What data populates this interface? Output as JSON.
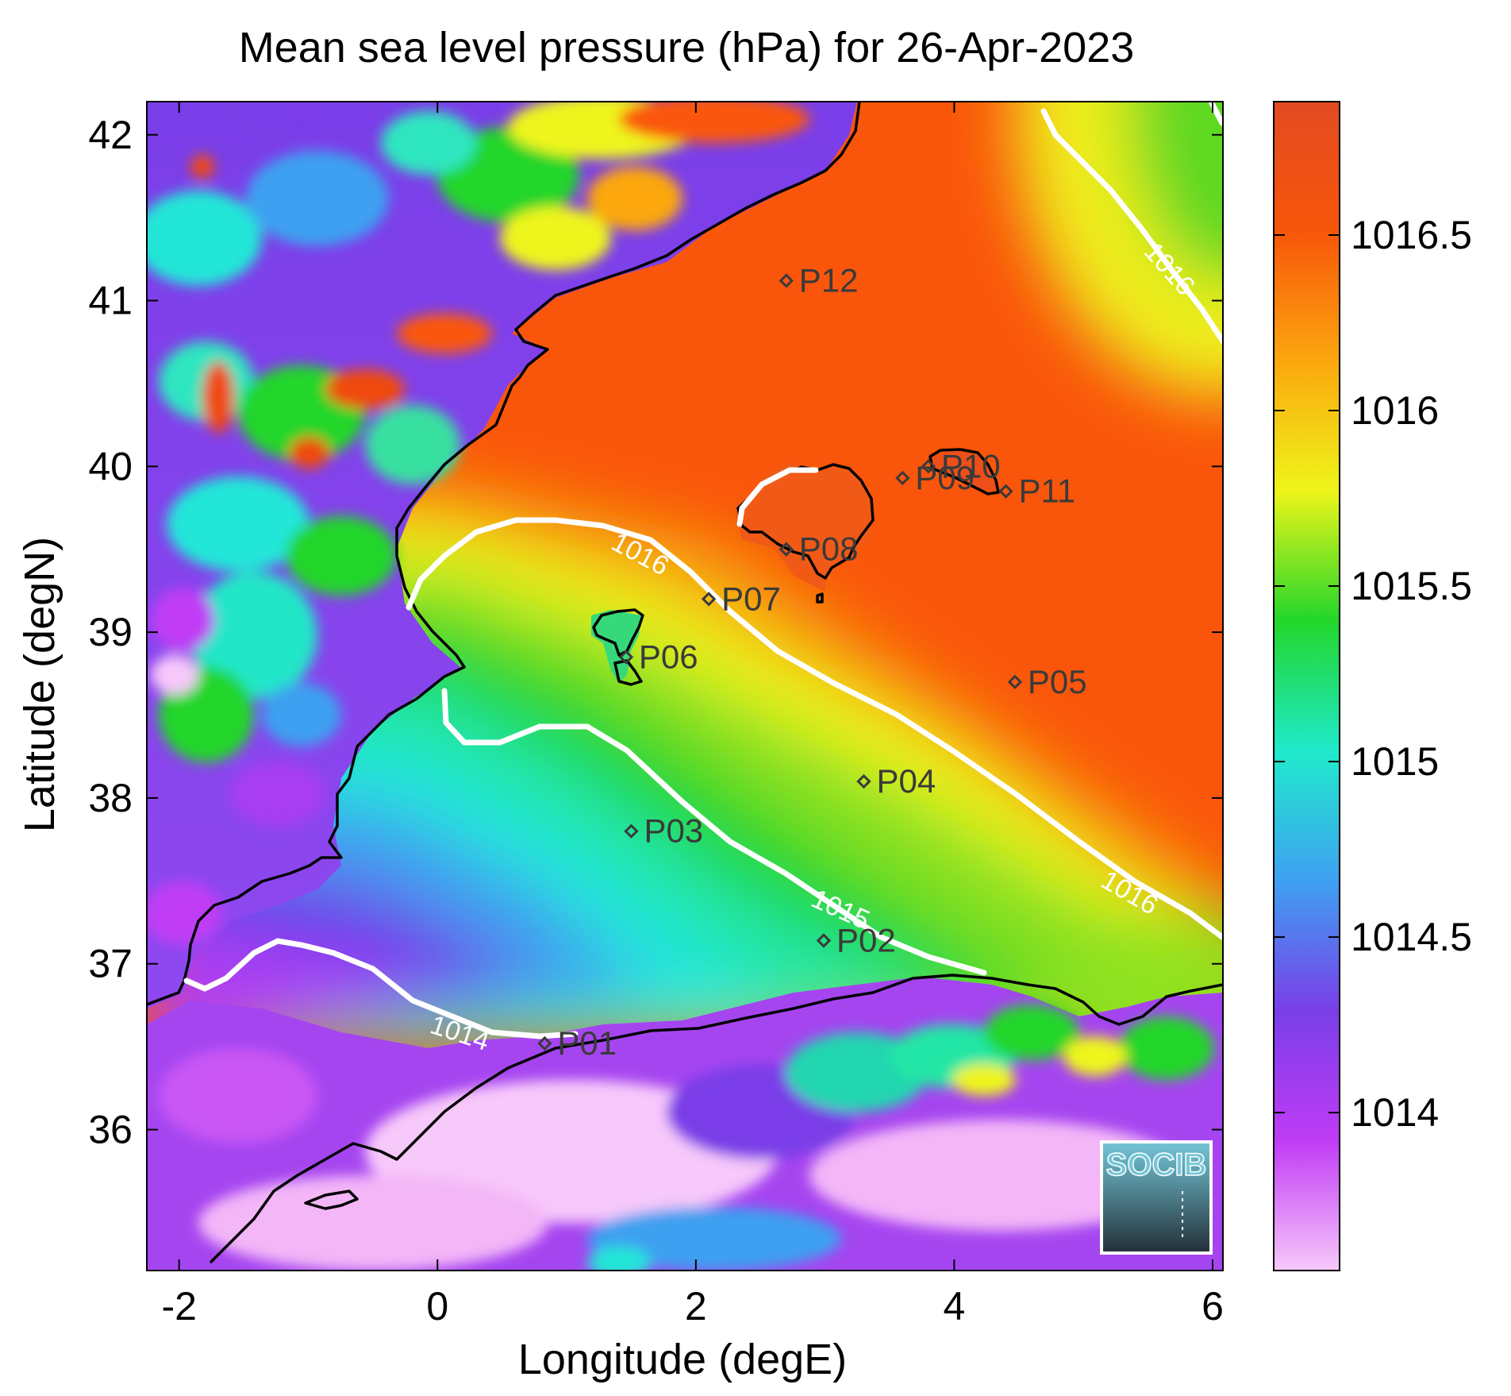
{
  "title": "Mean sea level pressure (hPa) for 26-Apr-2023",
  "map": {
    "xlabel": "Longitude (degE)",
    "ylabel": "Latitude (degN)",
    "xlim": [
      -2.25,
      6.08
    ],
    "ylim": [
      35.15,
      42.2
    ],
    "xticks": [
      {
        "value": -2,
        "label": "-2"
      },
      {
        "value": 0,
        "label": "0"
      },
      {
        "value": 2,
        "label": "2"
      },
      {
        "value": 4,
        "label": "4"
      },
      {
        "value": 6,
        "label": "6"
      }
    ],
    "yticks": [
      {
        "value": 36,
        "label": "36"
      },
      {
        "value": 37,
        "label": "37"
      },
      {
        "value": 38,
        "label": "38"
      },
      {
        "value": 39,
        "label": "39"
      },
      {
        "value": 40,
        "label": "40"
      },
      {
        "value": 41,
        "label": "41"
      },
      {
        "value": 42,
        "label": "42"
      }
    ],
    "stations": [
      {
        "label": "P01",
        "lon": 0.83,
        "lat": 36.52
      },
      {
        "label": "P02",
        "lon": 2.99,
        "lat": 37.14
      },
      {
        "label": "P03",
        "lon": 1.5,
        "lat": 37.8
      },
      {
        "label": "P04",
        "lon": 3.3,
        "lat": 38.1
      },
      {
        "label": "P05",
        "lon": 4.47,
        "lat": 38.7
      },
      {
        "label": "P06",
        "lon": 1.46,
        "lat": 38.85
      },
      {
        "label": "P07",
        "lon": 2.1,
        "lat": 39.2
      },
      {
        "label": "P08",
        "lon": 2.7,
        "lat": 39.5
      },
      {
        "label": "P09",
        "lon": 3.6,
        "lat": 39.93
      },
      {
        "label": "P10",
        "lon": 3.8,
        "lat": 40.0
      },
      {
        "label": "P11",
        "lon": 4.4,
        "lat": 39.85
      },
      {
        "label": "P12",
        "lon": 2.7,
        "lat": 41.12
      }
    ],
    "contour_labels": [
      "1014",
      "1015",
      "1016",
      "1016",
      "1016"
    ]
  },
  "colorbar": {
    "range": [
      1013.55,
      1016.88
    ],
    "ticks": [
      {
        "value": 1014,
        "label": "1014"
      },
      {
        "value": 1014.5,
        "label": "1014.5"
      },
      {
        "value": 1015,
        "label": "1015"
      },
      {
        "value": 1015.5,
        "label": "1015.5"
      },
      {
        "value": 1016,
        "label": "1016"
      },
      {
        "value": 1016.5,
        "label": "1016.5"
      }
    ],
    "stops": [
      "#f7c8fa",
      "#c03cf5",
      "#7a3ee8",
      "#3fa0f2",
      "#20eacc",
      "#22d62a",
      "#eef51a",
      "#fba70e",
      "#f7560a",
      "#e34a22"
    ]
  },
  "logo": {
    "text": "SOCIB",
    "accent": "#5bc4d6"
  }
}
